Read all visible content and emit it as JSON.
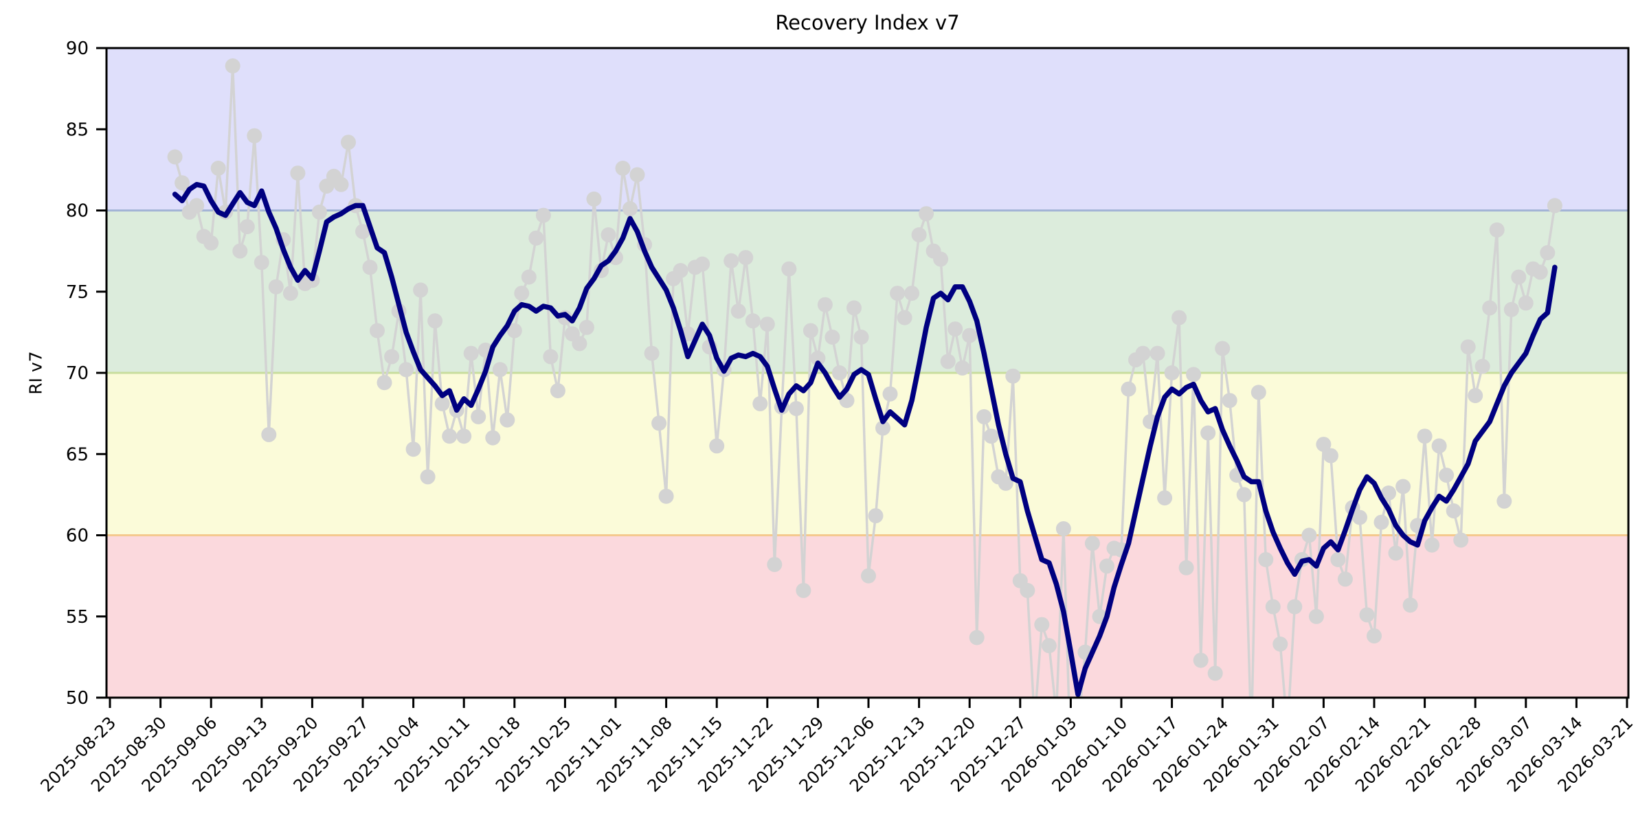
{
  "chart_data": {
    "type": "line",
    "title": "Recovery Index v7",
    "ylabel": "RI v7",
    "xlabel": "",
    "ylim": [
      50,
      90
    ],
    "y_ticks": [
      50,
      55,
      60,
      65,
      70,
      75,
      80,
      85,
      90
    ],
    "x_tick_labels": [
      "2025-08-23",
      "2025-08-30",
      "2025-09-06",
      "2025-09-13",
      "2025-09-20",
      "2025-09-27",
      "2025-10-04",
      "2025-10-11",
      "2025-10-18",
      "2025-10-25",
      "2025-11-01",
      "2025-11-08",
      "2025-11-15",
      "2025-11-22",
      "2025-11-29",
      "2025-12-06",
      "2025-12-13",
      "2025-12-20",
      "2025-12-27",
      "2026-01-03",
      "2026-01-10",
      "2026-01-17",
      "2026-01-24",
      "2026-01-31",
      "2026-02-07",
      "2026-02-14",
      "2026-02-21",
      "2026-02-28",
      "2026-03-07",
      "2026-03-14",
      "2026-03-21"
    ],
    "grid": false,
    "legend": null,
    "bands": [
      {
        "range": [
          80,
          90
        ],
        "fill": "#dfdffb"
      },
      {
        "range": [
          70,
          80
        ],
        "fill": "#dcecdc"
      },
      {
        "range": [
          60,
          70
        ],
        "fill": "#fbfbd9"
      },
      {
        "range": [
          50,
          60
        ],
        "fill": "#fbd9dd"
      }
    ],
    "boundary_lines": [
      {
        "y": 80,
        "color": "#a3b4d6"
      },
      {
        "y": 70,
        "color": "#c8de9d"
      },
      {
        "y": 60,
        "color": "#f4c98e"
      }
    ],
    "series_start_date": "2025-09-01",
    "frequency": "daily",
    "series": [
      {
        "name": "daily value",
        "color": "#d3d3d3",
        "marker": true,
        "values": [
          83.3,
          81.7,
          79.9,
          80.3,
          78.4,
          78.0,
          82.6,
          79.9,
          88.9,
          77.5,
          79.0,
          84.6,
          76.8,
          66.2,
          75.3,
          78.2,
          74.9,
          82.3,
          75.5,
          75.7,
          79.9,
          81.5,
          82.1,
          81.6,
          84.2,
          80.3,
          78.7,
          76.5,
          72.6,
          69.4,
          71.0,
          73.8,
          70.2,
          65.3,
          75.1,
          63.6,
          73.2,
          68.1,
          66.1,
          67.7,
          66.1,
          71.2,
          67.3,
          71.4,
          66.0,
          70.2,
          67.1,
          72.6,
          74.9,
          75.9,
          78.3,
          79.7,
          71.0,
          68.9,
          73.4,
          72.4,
          71.8,
          72.8,
          80.7,
          76.3,
          78.5,
          77.1,
          82.6,
          80.1,
          82.2,
          77.9,
          71.2,
          66.9,
          62.4,
          75.8,
          76.3,
          72.4,
          76.5,
          76.7,
          71.6,
          65.5,
          70.2,
          76.9,
          73.8,
          77.1,
          73.2,
          68.1,
          73.0,
          58.2,
          67.9,
          76.4,
          67.8,
          56.6,
          72.6,
          70.9,
          74.2,
          72.2,
          70.0,
          68.3,
          74.0,
          72.2,
          57.5,
          61.2,
          66.6,
          68.7,
          74.9,
          73.4,
          74.9,
          78.5,
          79.8,
          77.5,
          77.0,
          70.7,
          72.7,
          70.3,
          72.3,
          53.7,
          67.3,
          66.1,
          63.6,
          63.2,
          69.8,
          57.2,
          56.6,
          48.5,
          54.5,
          53.2,
          49.0,
          60.4,
          46.0,
          48.0,
          52.8,
          59.5,
          55.0,
          58.1,
          59.2,
          59.1,
          69.0,
          70.8,
          71.2,
          67.0,
          71.2,
          62.3,
          70.0,
          73.4,
          58.0,
          69.9,
          52.3,
          66.3,
          51.5,
          71.5,
          68.3,
          63.7,
          62.5,
          47.5,
          68.8,
          58.5,
          55.6,
          53.3,
          48.0,
          55.6,
          58.5,
          60.0,
          55.0,
          65.6,
          64.9,
          58.5,
          57.3,
          61.7,
          61.1,
          55.1,
          53.8,
          60.8,
          62.6,
          58.9,
          63.0,
          55.7,
          60.6,
          66.1,
          59.4,
          65.5,
          63.7,
          61.5,
          59.7,
          71.6,
          68.6,
          70.4,
          74.0,
          78.8,
          62.1,
          73.9,
          75.9,
          74.3,
          76.4,
          76.2,
          77.4,
          80.3
        ]
      },
      {
        "name": "smoothed (rolling mean)",
        "color": "#000080",
        "marker": false,
        "values": [
          81.0,
          80.6,
          81.3,
          81.6,
          81.5,
          80.6,
          79.9,
          79.7,
          80.4,
          81.1,
          80.5,
          80.3,
          81.2,
          79.9,
          78.9,
          77.6,
          76.5,
          75.7,
          76.3,
          75.8,
          77.5,
          79.3,
          79.6,
          79.8,
          80.1,
          80.3,
          80.3,
          79.0,
          77.7,
          77.4,
          75.9,
          74.2,
          72.5,
          71.3,
          70.2,
          69.7,
          69.2,
          68.6,
          68.9,
          67.7,
          68.4,
          68.0,
          69.0,
          70.1,
          71.6,
          72.3,
          72.9,
          73.8,
          74.2,
          74.1,
          73.8,
          74.1,
          74.0,
          73.5,
          73.6,
          73.2,
          74.0,
          75.2,
          75.8,
          76.6,
          76.9,
          77.5,
          78.3,
          79.5,
          78.7,
          77.5,
          76.5,
          75.8,
          75.1,
          74.0,
          72.6,
          71.0,
          72.0,
          73.0,
          72.3,
          70.9,
          70.1,
          70.9,
          71.1,
          71.0,
          71.2,
          71.0,
          70.4,
          69.0,
          67.7,
          68.7,
          69.2,
          68.9,
          69.4,
          70.6,
          70.0,
          69.2,
          68.5,
          69.0,
          69.9,
          70.2,
          69.9,
          68.4,
          67.0,
          67.6,
          67.2,
          66.8,
          68.3,
          70.5,
          72.8,
          74.6,
          74.9,
          74.5,
          75.3,
          75.3,
          74.4,
          73.2,
          71.2,
          69.0,
          66.8,
          65.0,
          63.5,
          63.3,
          61.5,
          60.0,
          58.5,
          58.3,
          57.0,
          55.3,
          52.8,
          50.2,
          51.8,
          52.8,
          53.8,
          55.0,
          56.8,
          58.2,
          59.5,
          61.5,
          63.5,
          65.5,
          67.3,
          68.5,
          69.0,
          68.7,
          69.1,
          69.3,
          68.3,
          67.6,
          67.8,
          66.5,
          65.5,
          64.6,
          63.6,
          63.3,
          63.3,
          61.5,
          60.2,
          59.2,
          58.3,
          57.6,
          58.4,
          58.5,
          58.1,
          59.2,
          59.6,
          59.1,
          60.3,
          61.6,
          62.8,
          63.6,
          63.2,
          62.3,
          61.6,
          60.6,
          60.0,
          59.6,
          59.4,
          60.9,
          61.7,
          62.4,
          62.1,
          62.8,
          63.6,
          64.4,
          65.8,
          66.4,
          67.0,
          68.1,
          69.2,
          70.0,
          70.6,
          71.2,
          72.3,
          73.3,
          73.7,
          76.5
        ]
      }
    ]
  }
}
